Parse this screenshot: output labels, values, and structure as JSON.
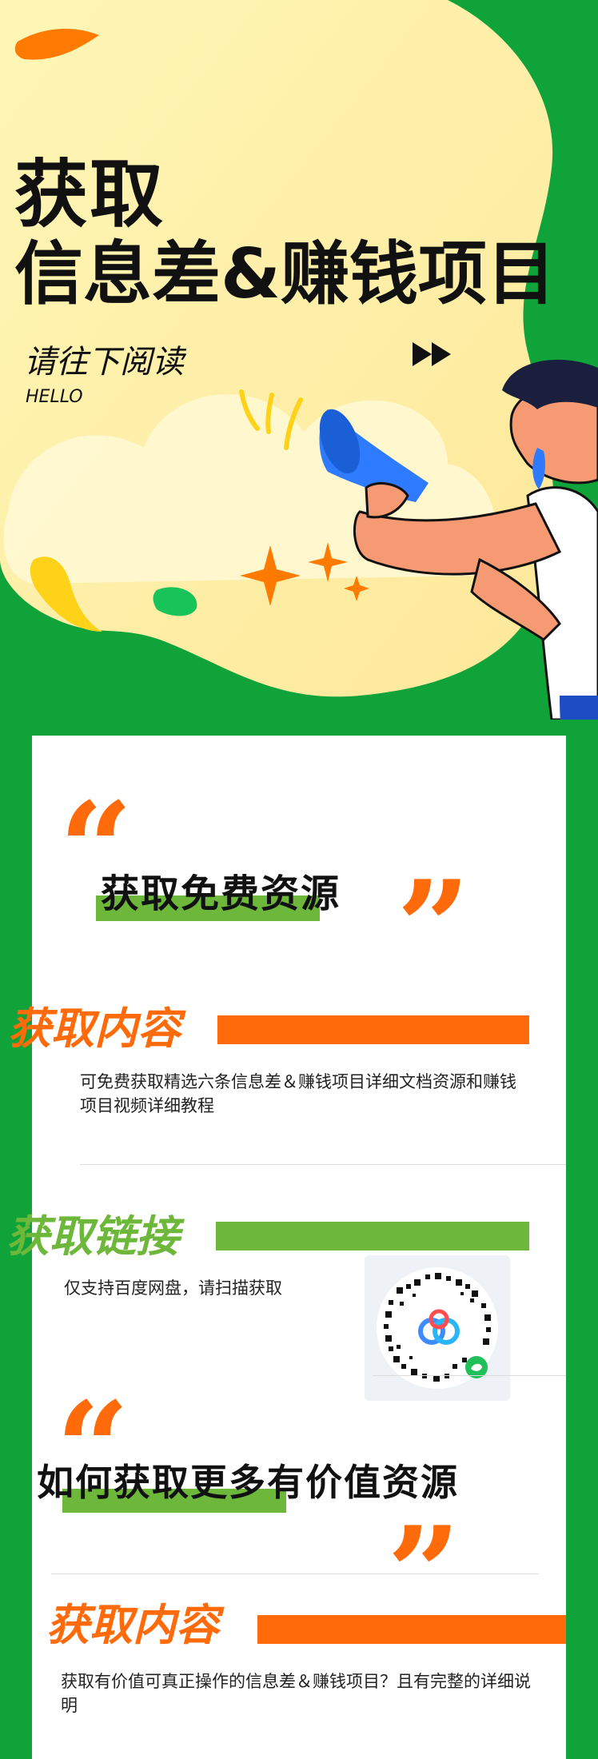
{
  "hero": {
    "title_line1": "获取",
    "title_line2": "信息差&赚钱项目",
    "subtitle": "请往下阅读",
    "hello": "HELLO"
  },
  "card": {
    "block1_label": "获取免费资源",
    "section1": {
      "title": "获取内容",
      "body": "可免费获取精选六条信息差＆赚钱项目详细文档资源和赚钱项目视频详细教程"
    },
    "section2": {
      "title": "获取链接",
      "body": "仅支持百度网盘，请扫描获取"
    },
    "block2_label": "如何获取更多有价值资源",
    "section3": {
      "title": "获取内容",
      "body": "获取有价值可真正操作的信息差＆赚钱项目？且有完整的详细说明"
    }
  },
  "colors": {
    "green": "#0fa33a",
    "lime": "#6db83a",
    "orange": "#ff6a0b",
    "yellow": "#fff3a8"
  }
}
